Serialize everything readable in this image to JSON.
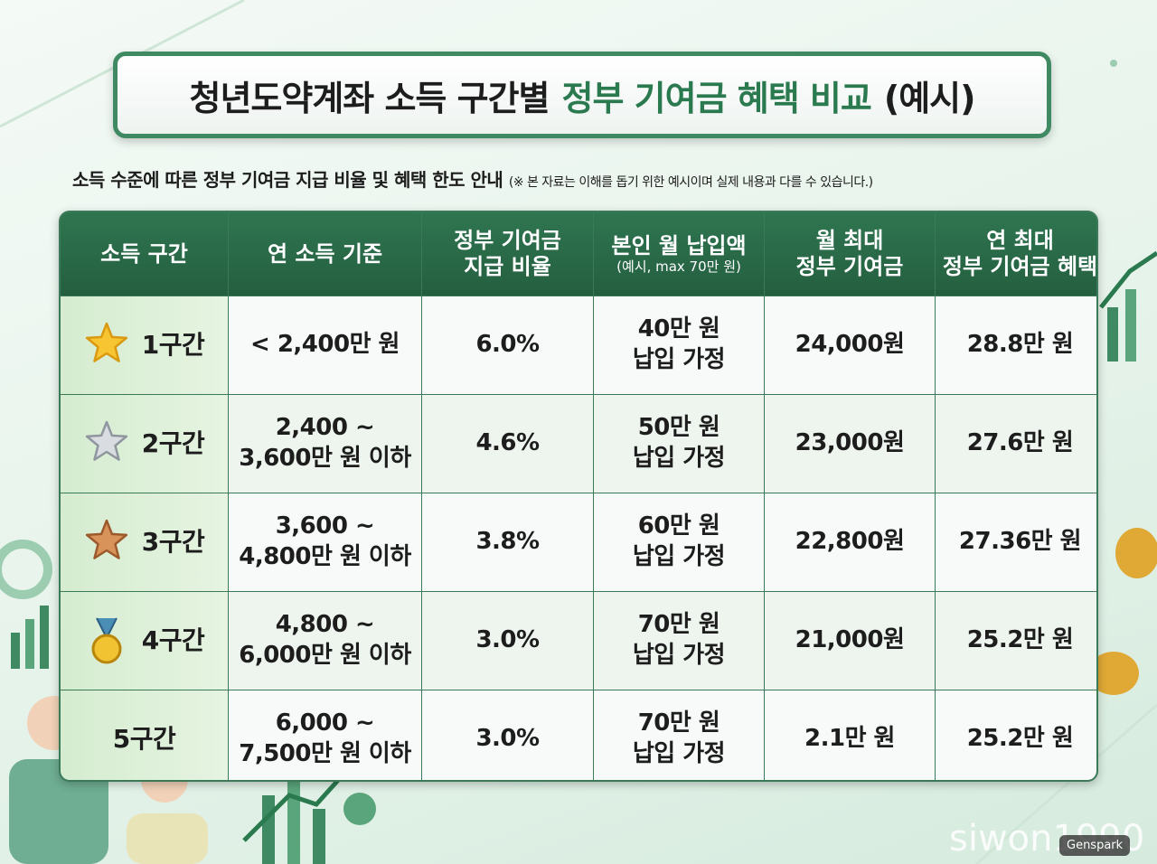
{
  "header": {
    "title": [
      "청년도약계좌 소득 구간별",
      "정부 기여금 혜택 비교",
      "(예시)"
    ],
    "subtitle": "소득 수준에 따른 정부 기여금 지급 비율 및 혜택 한도 안내",
    "note": "(※ 본 자료는 이해를 돕기 위한 예시이며 실제 내용과 다를 수 있습니다.)"
  },
  "table": {
    "columns": [
      [
        "소득 구간"
      ],
      [
        "연 소득 기준"
      ],
      [
        "정부 기여금",
        "지급 비율"
      ],
      [
        "본인 월 납입액",
        "(예시, max 70만 원)"
      ],
      [
        "월 최대",
        "정부 기여금"
      ],
      [
        "연 최대",
        "정부 기여금 혜택"
      ]
    ],
    "rows": [
      [
        [
          "1구간"
        ],
        [
          "< 2,400만 원"
        ],
        [
          "6.0%"
        ],
        [
          "40만 원",
          "납입 가정"
        ],
        [
          "24,000원"
        ],
        [
          "28.8만 원"
        ]
      ],
      [
        [
          "2구간"
        ],
        [
          "2,400 ~",
          "3,600만 원 이하"
        ],
        [
          "4.6%"
        ],
        [
          "50만 원",
          "납입 가정"
        ],
        [
          "23,000원"
        ],
        [
          "27.6만 원"
        ]
      ],
      [
        [
          "3구간"
        ],
        [
          "3,600 ~",
          "4,800만 원 이하"
        ],
        [
          "3.8%"
        ],
        [
          "60만 원",
          "납입 가정"
        ],
        [
          "22,800원"
        ],
        [
          "27.36만 원"
        ]
      ],
      [
        [
          "4구간"
        ],
        [
          "4,800 ~",
          "6,000만 원 이하"
        ],
        [
          "3.0%"
        ],
        [
          "70만 원",
          "납입 가정"
        ],
        [
          "21,000원"
        ],
        [
          "25.2만 원"
        ]
      ],
      [
        [
          "5구간"
        ],
        [
          "6,000 ~",
          "7,500만 원 이하"
        ],
        [
          "3.0%"
        ],
        [
          "70만 원",
          "납입 가정"
        ],
        [
          "2.1만 원"
        ],
        [
          "25.2만 원"
        ]
      ]
    ]
  },
  "watermark": "siwon1990",
  "badge": "Genspark"
}
